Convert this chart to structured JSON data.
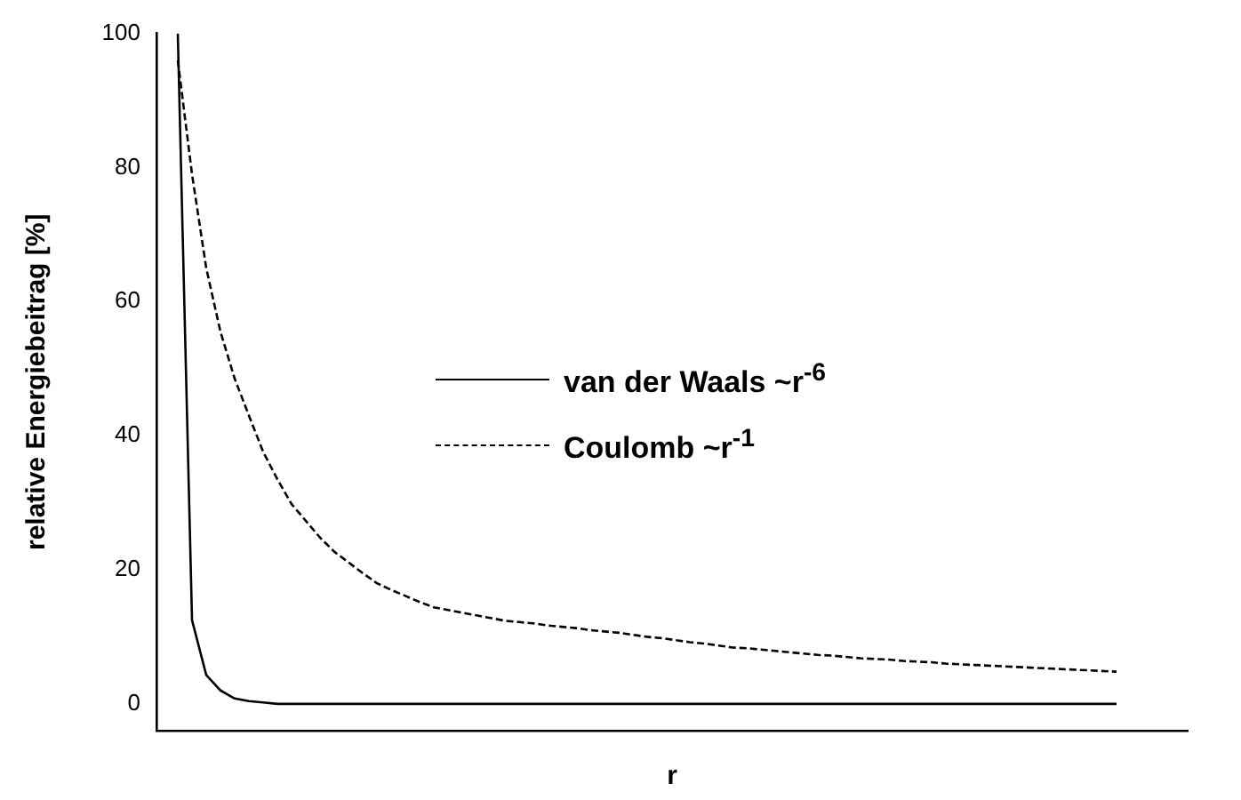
{
  "chart_data": {
    "type": "line",
    "xlabel": "r",
    "ylabel": "relative Energiebeitrag [%]",
    "categories": [
      null,
      null,
      null,
      null,
      null,
      null,
      null,
      null,
      null,
      null,
      null,
      null,
      null,
      null,
      null,
      null,
      null,
      null,
      null,
      null,
      null,
      null,
      null,
      null,
      null,
      null,
      null,
      null,
      null,
      null,
      null,
      null,
      null,
      null,
      null,
      null,
      null,
      null,
      null,
      null,
      null,
      null,
      null,
      null,
      null,
      null,
      null,
      null,
      null,
      null,
      null,
      null,
      null,
      null,
      null,
      null,
      null,
      null,
      null,
      null,
      null,
      null,
      null,
      null,
      null,
      null,
      null
    ],
    "series": [
      {
        "name": "van der Waals ~r$^{-6}$",
        "color": "#000000",
        "line_style": "solid",
        "values": [
          100,
          12.5,
          4.3,
          2,
          0.8,
          0.4,
          0.2,
          0,
          0,
          0,
          0,
          0,
          0,
          0,
          0,
          0,
          0,
          0,
          0,
          0,
          0,
          0,
          0,
          0,
          0,
          0,
          0,
          0,
          0,
          0,
          0,
          0,
          0,
          0,
          0,
          0,
          0,
          0,
          0,
          0,
          0,
          0,
          0,
          0,
          0,
          0,
          0,
          0,
          0,
          0,
          0,
          0,
          0,
          0,
          0,
          0,
          0,
          0,
          0,
          0,
          0,
          0,
          0,
          0,
          0,
          0,
          0
        ]
      },
      {
        "name": "Coulomb ~r$^{-1}$",
        "color": "#000000",
        "line_style": "dashed",
        "values": [
          96,
          79,
          65,
          55.5,
          48.5,
          43,
          37.6,
          33.5,
          29.8,
          27.3,
          24.8,
          22.7,
          21.1,
          19.5,
          18,
          17,
          16.1,
          15.2,
          14.4,
          14,
          13.6,
          13.2,
          12.8,
          12.4,
          12.2,
          12,
          11.7,
          11.5,
          11.3,
          11,
          10.8,
          10.6,
          10.3,
          10,
          9.8,
          9.5,
          9.2,
          9,
          8.7,
          8.4,
          8.3,
          8.1,
          7.9,
          7.7,
          7.5,
          7.3,
          7.2,
          7,
          6.8,
          6.7,
          6.6,
          6.4,
          6.3,
          6.2,
          6,
          5.9,
          5.8,
          5.7,
          5.6,
          5.5,
          5.4,
          5.3,
          5.2,
          5.1,
          5,
          4.9,
          4.8
        ]
      }
    ],
    "ylim": [
      -4,
      100
    ],
    "yticks": [
      0,
      20,
      40,
      60,
      80,
      100
    ],
    "legend": "center",
    "marker": "none",
    "tick_labels": "y"
  }
}
